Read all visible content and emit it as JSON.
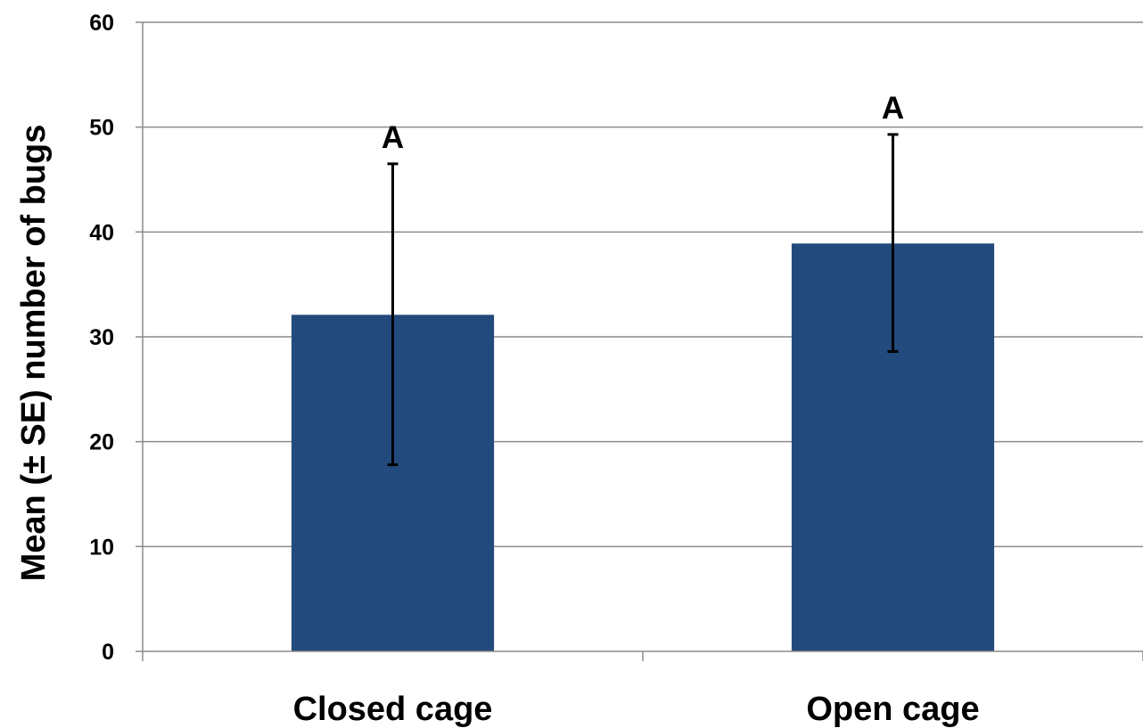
{
  "chart_data": {
    "type": "bar",
    "title": "",
    "xlabel": "",
    "ylabel": "Mean (± SE) number of bugs",
    "categories": [
      "Closed cage",
      "Open cage"
    ],
    "values": [
      32.1,
      38.9
    ],
    "error_high": [
      46.5,
      49.3
    ],
    "error_low": [
      17.8,
      28.6
    ],
    "annotations": [
      "A",
      "A"
    ],
    "ylim": [
      0,
      60
    ],
    "yticks": [
      "0",
      "10",
      "20",
      "30",
      "40",
      "50",
      "60"
    ],
    "grid": true,
    "legend": "none",
    "colors": {
      "bar": "#224A7C",
      "grid": "#8C8C8C",
      "error": "#000000"
    }
  }
}
